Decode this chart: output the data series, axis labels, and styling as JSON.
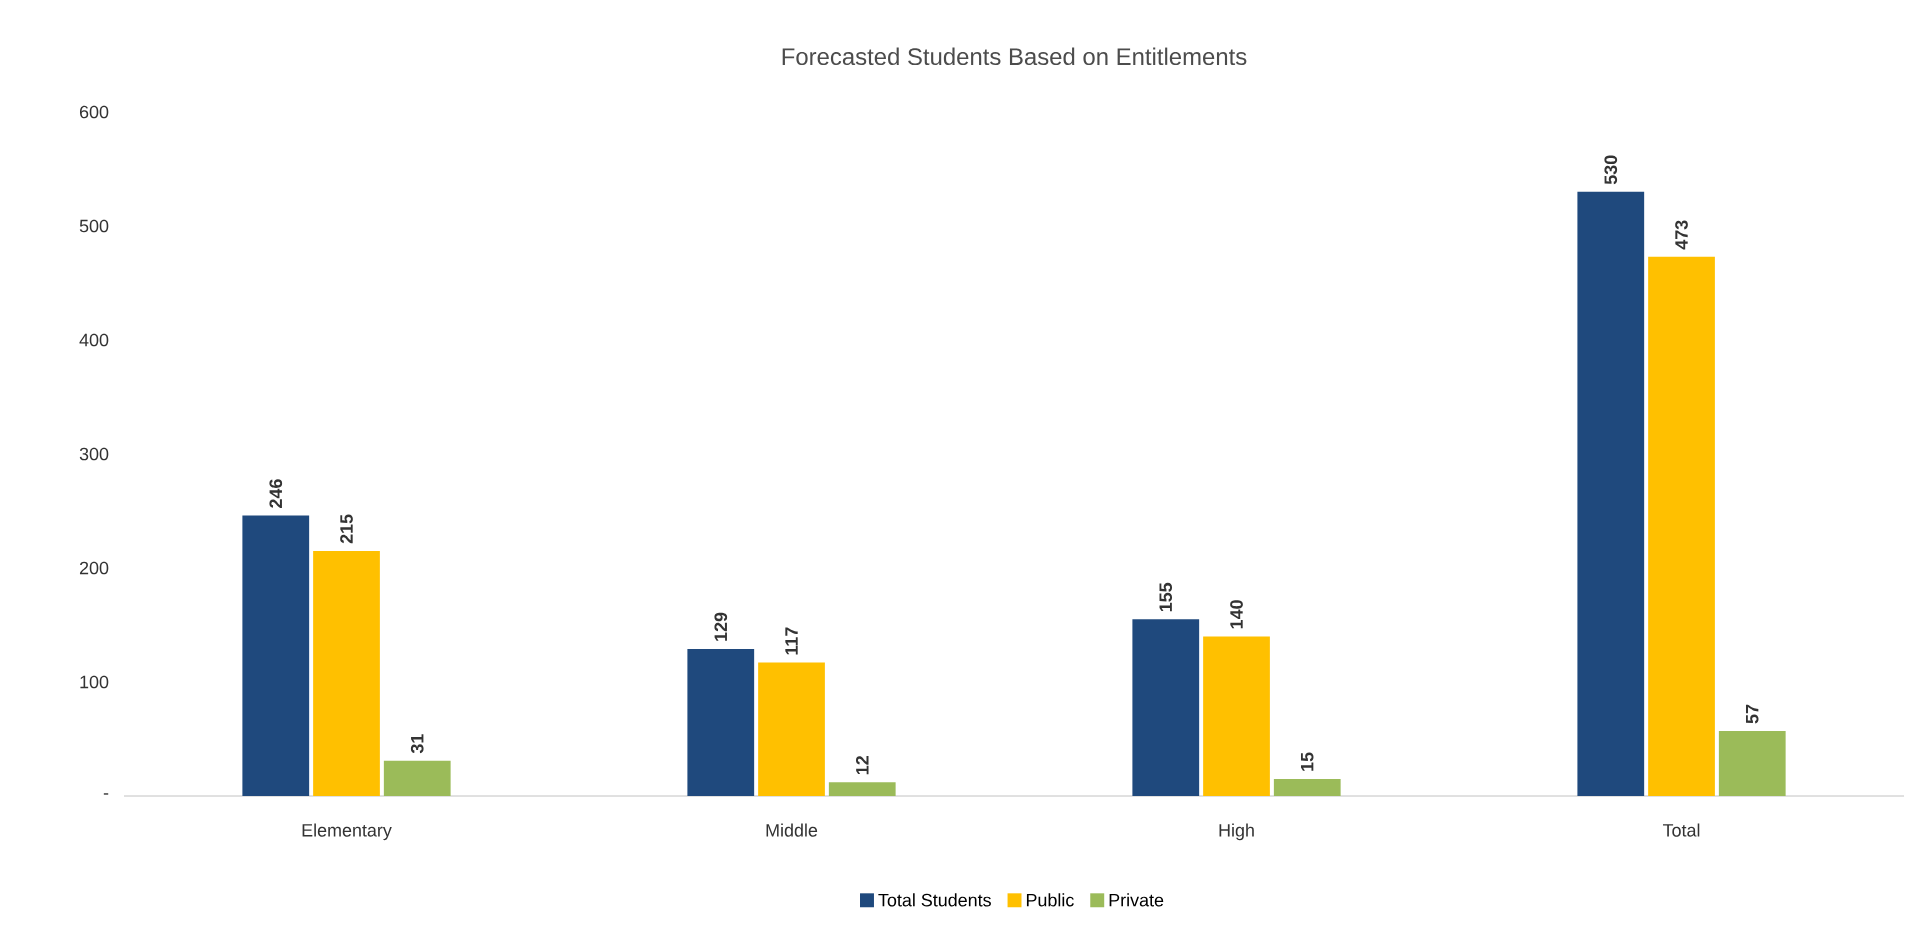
{
  "chart_data": {
    "type": "bar",
    "title": "Forecasted Students Based on Entitlements",
    "categories": [
      "Elementary",
      "Middle",
      "High",
      "Total"
    ],
    "series": [
      {
        "name": "Total Students",
        "color": "#1f497d",
        "values": [
          246,
          129,
          155,
          530
        ]
      },
      {
        "name": "Public",
        "color": "#ffc000",
        "values": [
          215,
          117,
          140,
          473
        ]
      },
      {
        "name": "Private",
        "color": "#9bbb59",
        "values": [
          31,
          12,
          15,
          57
        ]
      }
    ],
    "ylim": [
      0,
      600
    ],
    "yticks": [
      {
        "value": 0,
        "label": "-"
      },
      100,
      200,
      300,
      400,
      500,
      600
    ],
    "data_labels": true,
    "legend": "bottom",
    "grid": false
  }
}
